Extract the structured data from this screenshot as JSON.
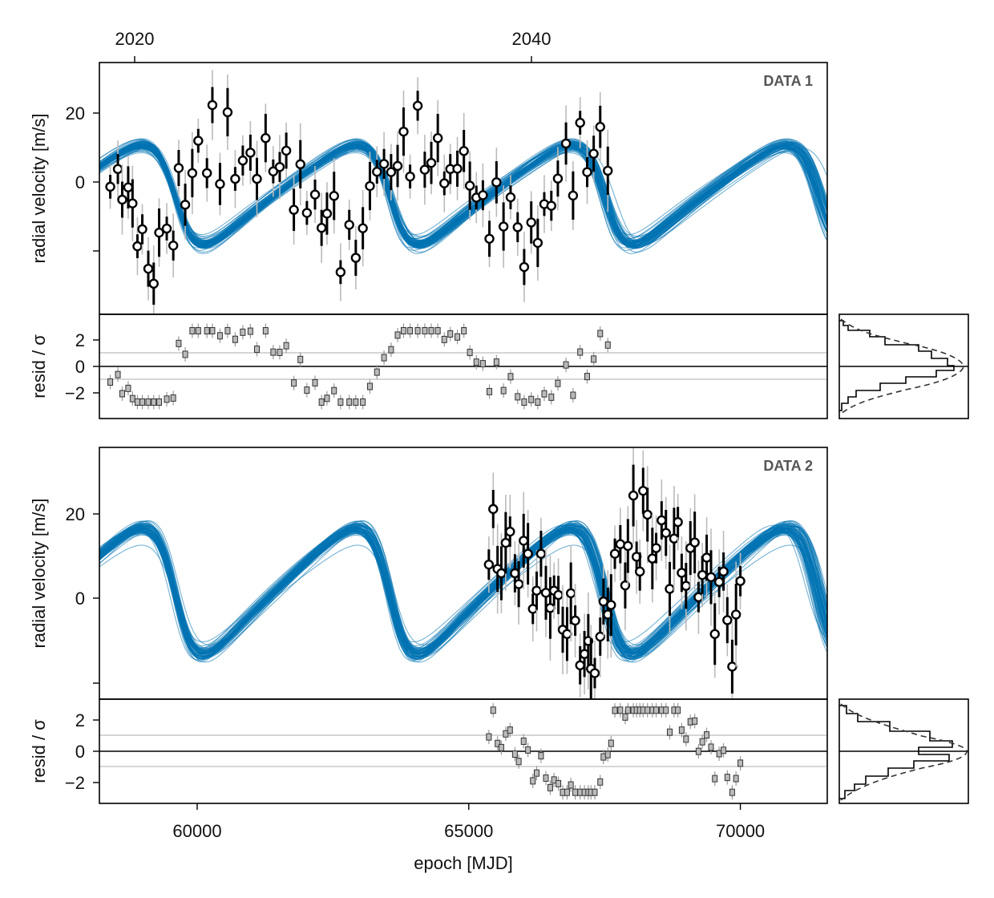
{
  "chart_data": [
    {
      "type": "scatter",
      "panel_label": "DATA 1",
      "ylabel": "radial velocity [m/s]",
      "y_tick_labels": [
        "0",
        "20"
      ],
      "x_range_mjd": [
        58200,
        71600
      ],
      "ylim": [
        -38,
        36
      ],
      "grid": false,
      "model": {
        "name": "posterior orbit draws",
        "color": "#0072b2"
      },
      "points_mjd_rv": [
        [
          58400,
          -0.5
        ],
        [
          58540,
          4.7
        ],
        [
          58620,
          -4.3
        ],
        [
          58730,
          -0.7
        ],
        [
          58810,
          -5.4
        ],
        [
          58900,
          -18.0
        ],
        [
          58990,
          -13.0
        ],
        [
          59100,
          -24.6
        ],
        [
          59200,
          -29.0
        ],
        [
          59300,
          -14.0
        ],
        [
          59440,
          -12.8
        ],
        [
          59560,
          -17.8
        ],
        [
          59660,
          5.0
        ],
        [
          59780,
          -5.8
        ],
        [
          59910,
          3.5
        ],
        [
          60020,
          13.0
        ],
        [
          60180,
          3.5
        ],
        [
          60280,
          23.5
        ],
        [
          60420,
          0.3
        ],
        [
          60560,
          21.4
        ],
        [
          60700,
          1.8
        ],
        [
          60840,
          7.2
        ],
        [
          60980,
          9.5
        ],
        [
          61100,
          1.8
        ],
        [
          61260,
          13.8
        ],
        [
          61400,
          4.0
        ],
        [
          61520,
          5.3
        ],
        [
          61640,
          10.1
        ],
        [
          61780,
          -7.3
        ],
        [
          61900,
          6.1
        ],
        [
          62020,
          -8.2
        ],
        [
          62170,
          -2.8
        ],
        [
          62290,
          -12.6
        ],
        [
          62390,
          -8.4
        ],
        [
          62520,
          -3.2
        ],
        [
          62640,
          -25.6
        ],
        [
          62800,
          -11.7
        ],
        [
          62920,
          -21.4
        ],
        [
          63050,
          -12.7
        ],
        [
          63180,
          -0.3
        ],
        [
          63310,
          3.9
        ],
        [
          63440,
          6.2
        ],
        [
          63570,
          3.8
        ],
        [
          63690,
          5.6
        ],
        [
          63800,
          15.7
        ],
        [
          63920,
          2.5
        ],
        [
          64060,
          23.3
        ],
        [
          64190,
          4.5
        ],
        [
          64310,
          6.5
        ],
        [
          64430,
          13.8
        ],
        [
          64550,
          0.5
        ],
        [
          64660,
          4.7
        ],
        [
          64790,
          4.8
        ],
        [
          64910,
          10.0
        ],
        [
          65020,
          -0.2
        ],
        [
          65140,
          -3.7
        ],
        [
          65260,
          -3.0
        ],
        [
          65380,
          -15.8
        ],
        [
          65510,
          0.8
        ],
        [
          65640,
          -12.2
        ],
        [
          65770,
          -3.6
        ],
        [
          65900,
          -12.4
        ],
        [
          66020,
          -24.1
        ],
        [
          66150,
          -11.0
        ],
        [
          66270,
          -17.0
        ],
        [
          66390,
          -5.6
        ],
        [
          66520,
          -6.1
        ],
        [
          66640,
          1.9
        ],
        [
          66790,
          12.2
        ],
        [
          66920,
          -3.1
        ],
        [
          67050,
          18.3
        ],
        [
          67180,
          3.8
        ],
        [
          67300,
          9.2
        ],
        [
          67420,
          17.1
        ],
        [
          67560,
          4.2
        ]
      ]
    },
    {
      "type": "scatter",
      "panel_label": "",
      "ylabel": "resid / σ",
      "y_tick_labels": [
        "−2",
        "0",
        "2"
      ],
      "ylim": [
        -3.8,
        3.8
      ],
      "reference_lines": [
        -1,
        0,
        1
      ],
      "histogram": {
        "shown": true,
        "gaussian_overlay": "dashed"
      }
    },
    {
      "type": "scatter",
      "panel_label": "DATA 2",
      "ylabel": "radial velocity [m/s]",
      "y_tick_labels": [
        "0",
        "20"
      ],
      "x_range_mjd": [
        58200,
        71600
      ],
      "ylim": [
        -20,
        38
      ],
      "grid": false,
      "model": {
        "name": "posterior orbit draws",
        "color": "#0072b2"
      },
      "points_mjd_rv": [
        [
          65370,
          11.0
        ],
        [
          65450,
          23.8
        ],
        [
          65530,
          10.0
        ],
        [
          65600,
          9.0
        ],
        [
          65680,
          16.0
        ],
        [
          65760,
          18.6
        ],
        [
          65850,
          9.0
        ],
        [
          65920,
          6.5
        ],
        [
          66010,
          16.5
        ],
        [
          66090,
          13.5
        ],
        [
          66180,
          0.8
        ],
        [
          66250,
          5.0
        ],
        [
          66330,
          13.5
        ],
        [
          66420,
          4.5
        ],
        [
          66500,
          1.0
        ],
        [
          66570,
          5.0
        ],
        [
          66650,
          4.0
        ],
        [
          66730,
          -4.0
        ],
        [
          66810,
          -5.0
        ],
        [
          66880,
          4.4
        ],
        [
          66960,
          -1.9
        ],
        [
          67050,
          -12.2
        ],
        [
          67130,
          -9.6
        ],
        [
          67200,
          -6.6
        ],
        [
          67250,
          -13.0
        ],
        [
          67320,
          -14.0
        ],
        [
          67420,
          -5.6
        ],
        [
          67480,
          2.5
        ],
        [
          67560,
          -0.5
        ],
        [
          67620,
          1.7
        ],
        [
          67690,
          13.5
        ],
        [
          67790,
          15.7
        ],
        [
          67880,
          6.2
        ],
        [
          67930,
          15.3
        ],
        [
          68030,
          26.9
        ],
        [
          68090,
          12.8
        ],
        [
          68150,
          9.4
        ],
        [
          68210,
          28.0
        ],
        [
          68290,
          22.5
        ],
        [
          68380,
          12.4
        ],
        [
          68450,
          14.8
        ],
        [
          68550,
          21.2
        ],
        [
          68630,
          18.3
        ],
        [
          68700,
          5.4
        ],
        [
          68780,
          17.0
        ],
        [
          68850,
          20.8
        ],
        [
          68920,
          9.1
        ],
        [
          69000,
          6.1
        ],
        [
          69080,
          14.8
        ],
        [
          69160,
          16.1
        ],
        [
          69230,
          3.5
        ],
        [
          69300,
          8.6
        ],
        [
          69380,
          12.6
        ],
        [
          69460,
          8.1
        ],
        [
          69530,
          -5.0
        ],
        [
          69610,
          7.0
        ],
        [
          69690,
          9.4
        ],
        [
          69760,
          -1.8
        ],
        [
          69850,
          -12.5
        ],
        [
          69920,
          -0.5
        ],
        [
          70000,
          7.2
        ]
      ]
    },
    {
      "type": "scatter",
      "panel_label": "",
      "ylabel": "resid / σ",
      "xlabel": "epoch [MJD]",
      "x_tick_labels": [
        "60000",
        "65000",
        "70000"
      ],
      "y_tick_labels": [
        "−2",
        "0",
        "2"
      ],
      "ylim": [
        -3.3,
        3.3
      ],
      "reference_lines": [
        -1,
        0,
        1
      ],
      "histogram": {
        "shown": true,
        "gaussian_overlay": "dashed"
      }
    }
  ],
  "top_axis": {
    "tick_labels": [
      "2020",
      "2040"
    ],
    "tick_mjd": [
      58849,
      66154
    ]
  },
  "colors": {
    "model": "#0072b2",
    "errorbar_inner": "#000000",
    "errorbar_outer": "#bbbbbb",
    "marker_fill": "#ffffff",
    "panel_label": "#555555"
  }
}
